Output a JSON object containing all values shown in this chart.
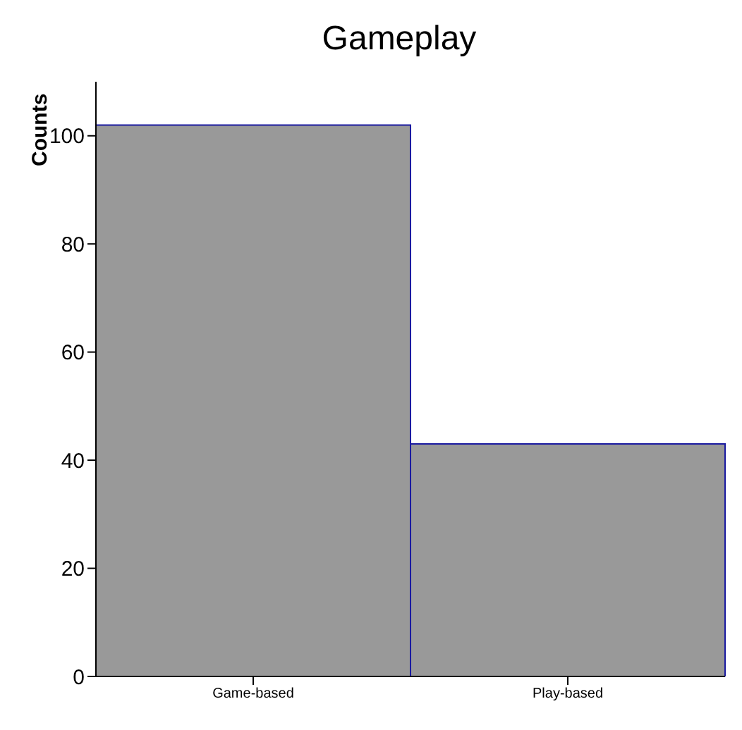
{
  "chart_data": {
    "type": "bar",
    "title": "Gameplay",
    "ylabel": "Counts",
    "categories": [
      "Game-based",
      "Play-based"
    ],
    "values": [
      102,
      43
    ],
    "color": "#999999",
    "ylim": [
      0,
      110
    ],
    "yticks": [
      0,
      20,
      40,
      60,
      80,
      100
    ],
    "grid": false,
    "legend": false
  }
}
